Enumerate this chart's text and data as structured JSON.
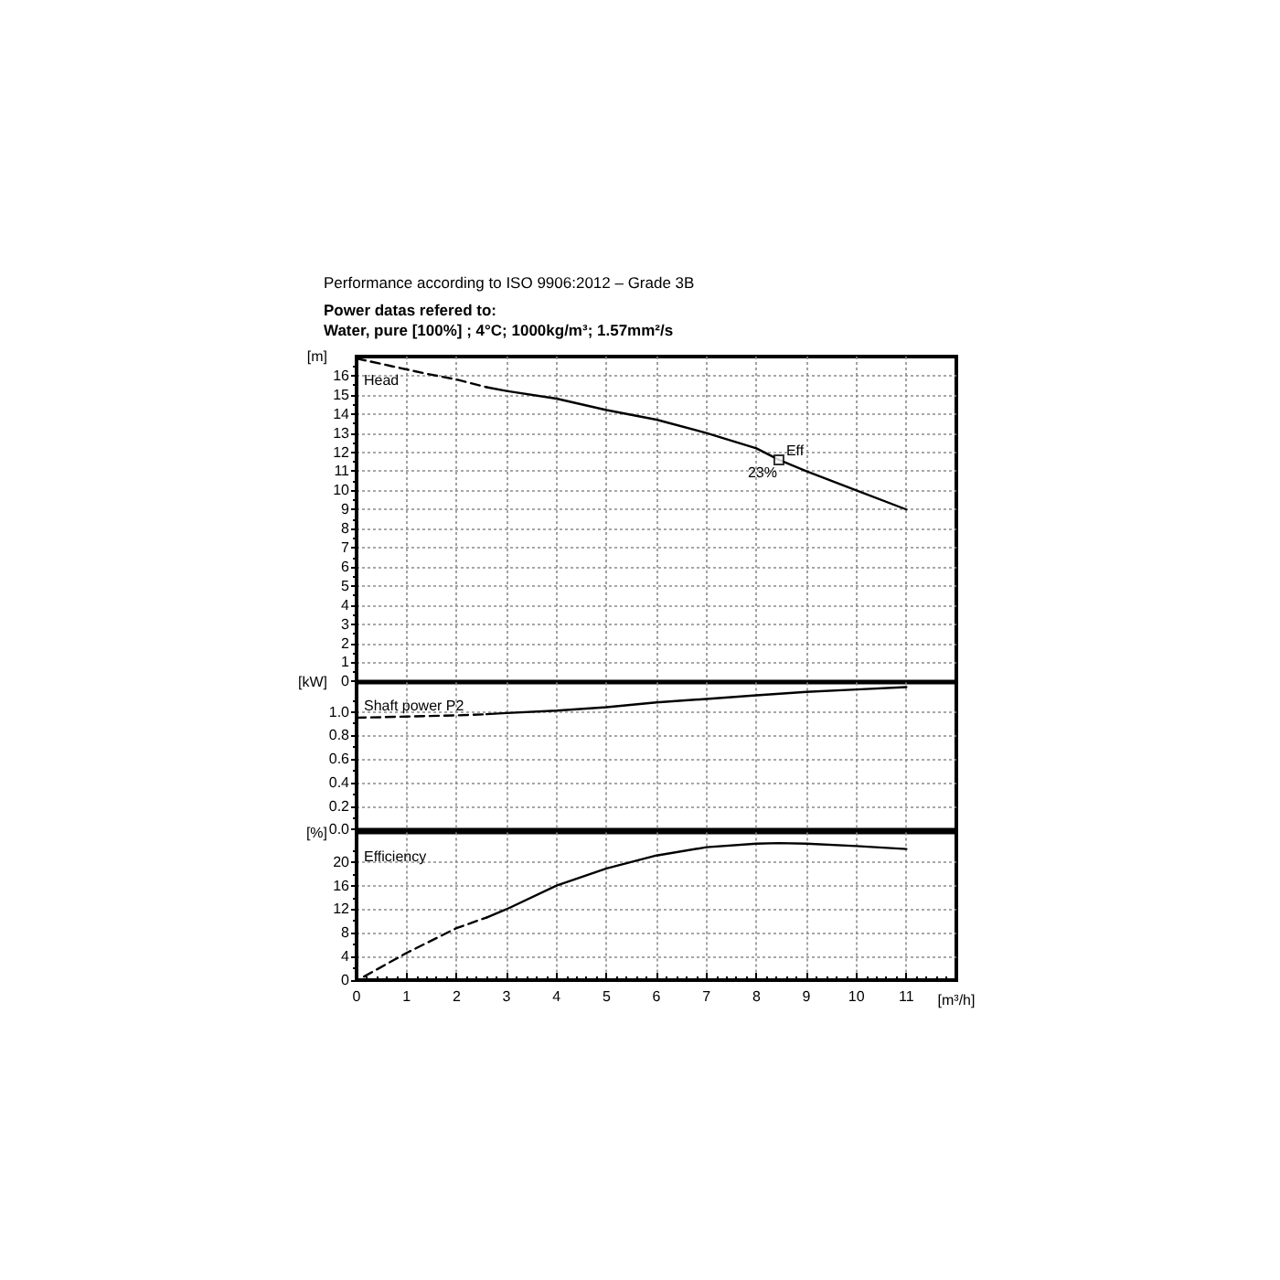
{
  "chart_data": [
    {
      "type": "line",
      "title": "Performance according to ISO 9906:2012 – Grade 3B",
      "subtitle": "Power datas refered to:\nWater, pure [100%] ; 4°C; 1000kg/m³; 1.57mm²/s",
      "ylabel": "[m]",
      "annotations": [
        "Head",
        {
          "text": "Eff",
          "x": 8.45,
          "y": 11.6
        },
        {
          "text": "23%",
          "x": 8.45,
          "y": 11.6
        }
      ],
      "xlim": [
        0,
        12
      ],
      "xticks": [
        0,
        1,
        2,
        3,
        4,
        5,
        6,
        7,
        8,
        9,
        10,
        11
      ],
      "ylim": [
        0,
        17
      ],
      "yticks": [
        0,
        1,
        2,
        3,
        4,
        5,
        6,
        7,
        8,
        9,
        10,
        11,
        12,
        13,
        14,
        15,
        16
      ],
      "grid": true,
      "tick_labels": "y",
      "line_style": "solid",
      "series": [
        {
          "color": "#000000",
          "line_style": "dashed",
          "x": [
            0,
            0.7,
            1.4,
            2,
            2.6
          ],
          "values": [
            16.9,
            16.5,
            16.1,
            15.8,
            15.4
          ]
        },
        {
          "color": "#000000",
          "x": [
            2.6,
            3,
            4,
            5,
            6,
            7,
            8,
            8.45,
            9,
            10,
            11
          ],
          "values": [
            15.4,
            15.2,
            14.8,
            14.2,
            13.7,
            13.0,
            12.2,
            11.6,
            11.0,
            10.0,
            9.0
          ]
        },
        {
          "type": "scatter",
          "marker": "square",
          "color": "#000000",
          "x": [
            8.45
          ],
          "values": [
            11.6
          ]
        }
      ]
    },
    {
      "type": "line",
      "ylabel": "[kW]",
      "annotations": [
        "Shaft power P2"
      ],
      "xlim": [
        0,
        12
      ],
      "xticks": [
        0,
        1,
        2,
        3,
        4,
        5,
        6,
        7,
        8,
        9,
        10,
        11
      ],
      "ylim": [
        0,
        1.25
      ],
      "yticks": [
        {
          "value": 0,
          "label": "0.0"
        },
        0.2,
        0.4,
        0.6,
        0.8,
        {
          "value": 1,
          "label": "1.0"
        }
      ],
      "grid": true,
      "tick_labels": "y",
      "line_style": "solid",
      "series": [
        {
          "color": "#000000",
          "line_style": "dashed",
          "x": [
            0,
            1,
            2,
            2.6
          ],
          "values": [
            0.95,
            0.96,
            0.97,
            0.98
          ]
        },
        {
          "color": "#000000",
          "x": [
            2.6,
            3,
            4,
            5,
            6,
            7,
            8,
            9,
            10,
            11
          ],
          "values": [
            0.98,
            0.99,
            1.01,
            1.04,
            1.08,
            1.11,
            1.14,
            1.17,
            1.19,
            1.21
          ]
        }
      ]
    },
    {
      "type": "line",
      "xlabel": "[m³/h]",
      "ylabel": "[%]",
      "annotations": [
        "Efficiency"
      ],
      "xlim": [
        0,
        12
      ],
      "xticks": [
        0,
        1,
        2,
        3,
        4,
        5,
        6,
        7,
        8,
        9,
        10,
        11
      ],
      "ylim": [
        0,
        25
      ],
      "yticks": [
        0,
        4,
        8,
        12,
        16,
        20
      ],
      "grid": true,
      "line_style": "solid",
      "series": [
        {
          "color": "#000000",
          "line_style": "dashed",
          "x": [
            0.15,
            1,
            2,
            2.6
          ],
          "values": [
            0.6,
            4.6,
            8.8,
            10.6
          ]
        },
        {
          "color": "#000000",
          "x": [
            2.6,
            3,
            4,
            5,
            6,
            7,
            8,
            8.45,
            9,
            10,
            11
          ],
          "values": [
            10.6,
            12.0,
            16.0,
            18.9,
            21.1,
            22.5,
            23.1,
            23.2,
            23.1,
            22.7,
            22.2
          ]
        }
      ]
    }
  ]
}
